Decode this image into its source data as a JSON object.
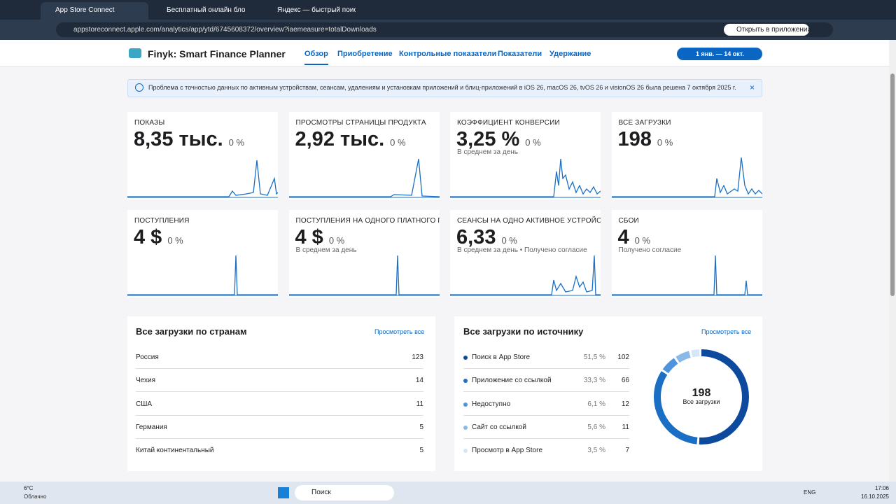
{
  "browser": {
    "tabs": [
      "App Store Connect",
      "Бесплатный онлайн блокнот д",
      "Яндекс — быстрый поиск в ин"
    ],
    "url": "appstoreconnect.apple.com/analytics/app/ytd/6745608372/overview?iaemeasure=totalDownloads",
    "open_in_app": "Открыть в приложении"
  },
  "header": {
    "app_name": "Finyk: Smart Finance Planner",
    "nav": [
      "Обзор",
      "Приобретение",
      "Контрольные показатели",
      "Показатели",
      "Удержание"
    ],
    "date_range": "1 янв. — 14 окт."
  },
  "banner": "Проблема с точностью данных по активным устройствам, сеансам, удалениям и установкам приложений и блиц-приложений в iOS 26, macOS 26, tvOS 26 и visionOS 26 была решена 7 октября 2025 г.",
  "metrics": [
    {
      "label": "ПОКАЗЫ",
      "value": "8,35 тыс.",
      "change": "0 %"
    },
    {
      "label": "ПРОСМОТРЫ СТРАНИЦЫ ПРОДУКТА",
      "value": "2,92 тыс.",
      "change": "0 %"
    },
    {
      "label": "КОЭФФИЦИЕНТ КОНВЕРСИИ",
      "value": "3,25 %",
      "change": "0 %",
      "note": "В среднем за день"
    },
    {
      "label": "ВСЕ ЗАГРУЗКИ",
      "value": "198",
      "change": "0 %"
    },
    {
      "label": "ПОСТУПЛЕНИЯ",
      "value": "4 $",
      "change": "0 %"
    },
    {
      "label": "ПОСТУПЛЕНИЯ НА ОДНОГО ПЛАТНОГО ПОЛЬЗ",
      "value": "4 $",
      "change": "0 %",
      "note": "В среднем за день"
    },
    {
      "label": "СЕАНСЫ НА ОДНО АКТИВНОЕ УСТРОЙСТВО",
      "value": "6,33",
      "change": "0 %",
      "note": "В среднем за день • Получено согласие"
    },
    {
      "label": "СБОИ",
      "value": "4",
      "change": "0 %",
      "note": "Получено согласие"
    }
  ],
  "countries": {
    "title": "Все загрузки по странам",
    "view_all": "Просмотреть все",
    "rows": [
      {
        "name": "Россия",
        "count": 123
      },
      {
        "name": "Чехия",
        "count": 14
      },
      {
        "name": "США",
        "count": 11
      },
      {
        "name": "Германия",
        "count": 5
      },
      {
        "name": "Китай континентальный",
        "count": 5
      }
    ]
  },
  "sources": {
    "title": "Все загрузки по источнику",
    "view_all": "Просмотреть все",
    "total": 198,
    "total_label": "Все загрузки",
    "rows": [
      {
        "name": "Поиск в App Store",
        "share": "51,5 %",
        "count": 102,
        "color": "#0d4a9e"
      },
      {
        "name": "Приложение со ссылкой",
        "share": "33,3 %",
        "count": 66,
        "color": "#1a6fc4"
      },
      {
        "name": "Недоступно",
        "share": "6,1 %",
        "count": 12,
        "color": "#4d94dc"
      },
      {
        "name": "Сайт со ссылкой",
        "share": "5,6 %",
        "count": 11,
        "color": "#8ab8e8"
      },
      {
        "name": "Просмотр в App Store",
        "share": "3,5 %",
        "count": 7,
        "color": "#d5e6f7"
      }
    ]
  },
  "taskbar": {
    "weather_temp": "6°C",
    "weather_text": "Облачно",
    "search": "Поиск",
    "lang": "ENG",
    "time": "17:06",
    "date": "16.10.2025"
  }
}
